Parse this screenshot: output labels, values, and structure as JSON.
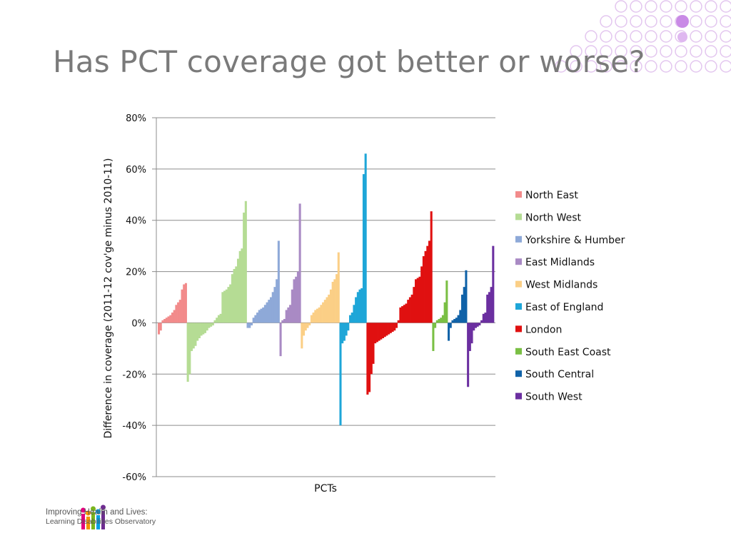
{
  "slide": {
    "title": "Has PCT coverage got better or worse?"
  },
  "logo": {
    "line1": "Improving Health and Lives:",
    "line2": "Learning Disabilities Observatory"
  },
  "chart_data": {
    "type": "bar",
    "xlabel": "PCTs",
    "ylabel": "Difference in coverage (2011-12  cov'ge minus 2010-11)",
    "ylim": [
      -0.6,
      0.8
    ],
    "yticks": [
      "80%",
      "60%",
      "40%",
      "20%",
      "0%",
      "-20%",
      "-40%",
      "-60%"
    ],
    "ytick_values": [
      0.8,
      0.6,
      0.4,
      0.2,
      0,
      -0.2,
      -0.4,
      -0.6
    ],
    "grid": true,
    "legend_position": "right",
    "series": [
      {
        "name": "North East",
        "color": "#f28b8b",
        "values": [
          -0.045,
          -0.03,
          0.01,
          0.015,
          0.02,
          0.025,
          0.03,
          0.04,
          0.05,
          0.07,
          0.08,
          0.09,
          0.13,
          0.15,
          0.155
        ]
      },
      {
        "name": "North West",
        "color": "#b5dc94",
        "values": [
          -0.23,
          -0.2,
          -0.11,
          -0.1,
          -0.09,
          -0.07,
          -0.06,
          -0.05,
          -0.045,
          -0.04,
          -0.03,
          -0.02,
          -0.015,
          -0.01,
          0.01,
          0.02,
          0.03,
          0.035,
          0.12,
          0.125,
          0.13,
          0.14,
          0.15,
          0.19,
          0.21,
          0.22,
          0.25,
          0.28,
          0.29,
          0.43,
          0.475
        ]
      },
      {
        "name": "Yorkshire & Humber",
        "color": "#8ea9d8",
        "values": [
          -0.02,
          -0.02,
          -0.01,
          0.02,
          0.03,
          0.04,
          0.05,
          0.055,
          0.06,
          0.07,
          0.08,
          0.09,
          0.1,
          0.12,
          0.14,
          0.17,
          0.32
        ]
      },
      {
        "name": "East Midlands",
        "color": "#a98ac4",
        "values": [
          -0.13,
          0.01,
          0.015,
          0.05,
          0.06,
          0.07,
          0.13,
          0.17,
          0.18,
          0.2,
          0.465
        ]
      },
      {
        "name": "West Midlands",
        "color": "#fbcf86",
        "values": [
          -0.1,
          -0.05,
          -0.03,
          -0.02,
          -0.01,
          0.03,
          0.04,
          0.05,
          0.055,
          0.06,
          0.07,
          0.08,
          0.09,
          0.1,
          0.11,
          0.13,
          0.16,
          0.17,
          0.19,
          0.275
        ]
      },
      {
        "name": "East of England",
        "color": "#1ea6d8",
        "values": [
          -0.4,
          -0.08,
          -0.07,
          -0.05,
          -0.03,
          0.03,
          0.04,
          0.07,
          0.1,
          0.12,
          0.13,
          0.135,
          0.58,
          0.66
        ]
      },
      {
        "name": "London",
        "color": "#e01010",
        "values": [
          -0.28,
          -0.27,
          -0.2,
          -0.16,
          -0.08,
          -0.075,
          -0.07,
          -0.065,
          -0.06,
          -0.055,
          -0.05,
          -0.045,
          -0.04,
          -0.035,
          -0.03,
          -0.02,
          0.01,
          0.06,
          0.065,
          0.07,
          0.075,
          0.09,
          0.1,
          0.11,
          0.14,
          0.17,
          0.175,
          0.18,
          0.22,
          0.26,
          0.28,
          0.3,
          0.32,
          0.435
        ]
      },
      {
        "name": "South East Coast",
        "color": "#7abf44",
        "values": [
          -0.11,
          -0.02,
          0.01,
          0.015,
          0.02,
          0.03,
          0.08,
          0.165
        ]
      },
      {
        "name": "South Central",
        "color": "#1062a8",
        "values": [
          -0.07,
          -0.02,
          0.01,
          0.015,
          0.02,
          0.03,
          0.05,
          0.11,
          0.14,
          0.205
        ]
      },
      {
        "name": "South West",
        "color": "#6b2fa0",
        "values": [
          -0.25,
          -0.11,
          -0.08,
          -0.03,
          -0.02,
          -0.015,
          -0.01,
          0.01,
          0.035,
          0.04,
          0.11,
          0.12,
          0.14,
          0.3
        ]
      }
    ]
  }
}
